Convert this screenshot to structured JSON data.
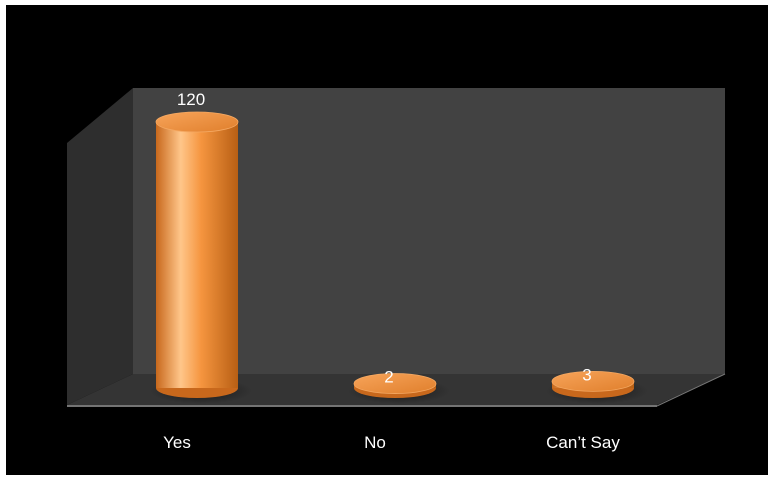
{
  "chart_data": {
    "type": "bar",
    "style": "3d-cylinder",
    "categories": [
      "Yes",
      "No",
      "Can’t Say"
    ],
    "values": [
      120,
      2,
      3
    ],
    "data_labels": [
      "120",
      "2",
      "3"
    ],
    "title": "",
    "xlabel": "",
    "ylabel": "",
    "ylim": [
      0,
      120
    ],
    "grid": false,
    "legend": "none",
    "colors": {
      "bar": "#f0903a",
      "bar_highlight": "#ffc68a",
      "bar_shadow": "#b85f14",
      "back_wall": "#424242",
      "side_wall": "#2e2e2e",
      "floor": "#343434",
      "background": "#000000",
      "text": "#ffffff"
    }
  }
}
